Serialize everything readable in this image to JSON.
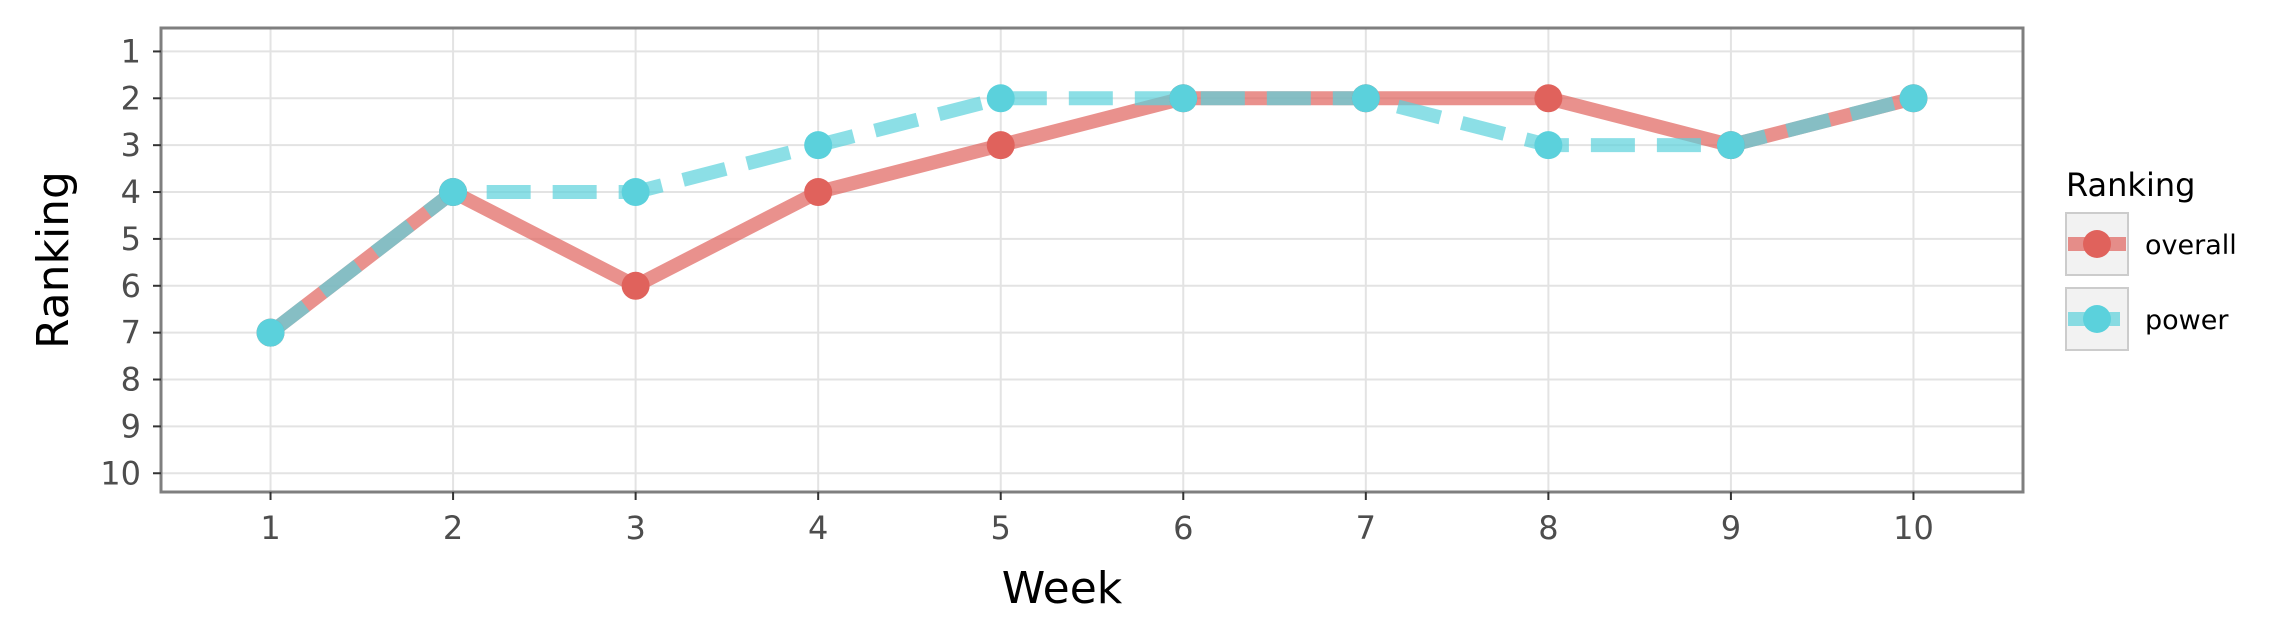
{
  "chart_data": {
    "type": "line",
    "title": "",
    "xlabel": "Week",
    "ylabel": "Ranking",
    "x": [
      1,
      2,
      3,
      4,
      5,
      6,
      7,
      8,
      9,
      10
    ],
    "xlim": [
      0.4,
      10.6
    ],
    "ylim": [
      10.4,
      0.5
    ],
    "y_reversed": true,
    "x_ticks": [
      "1",
      "2",
      "3",
      "4",
      "5",
      "6",
      "7",
      "8",
      "9",
      "10"
    ],
    "y_ticks": [
      "1",
      "2",
      "3",
      "4",
      "5",
      "6",
      "7",
      "8",
      "9",
      "10"
    ],
    "grid": true,
    "legend": {
      "title": "Ranking",
      "position": "right"
    },
    "series": [
      {
        "name": "overall",
        "color": "#e0625c",
        "dash": "solid",
        "values": [
          7,
          4,
          6,
          4,
          3,
          2,
          2,
          2,
          3,
          2
        ]
      },
      {
        "name": "power",
        "color": "#5bd1dc",
        "dash": "dashed",
        "values": [
          7,
          4,
          4,
          3,
          2,
          2,
          2,
          3,
          3,
          2
        ]
      }
    ]
  }
}
